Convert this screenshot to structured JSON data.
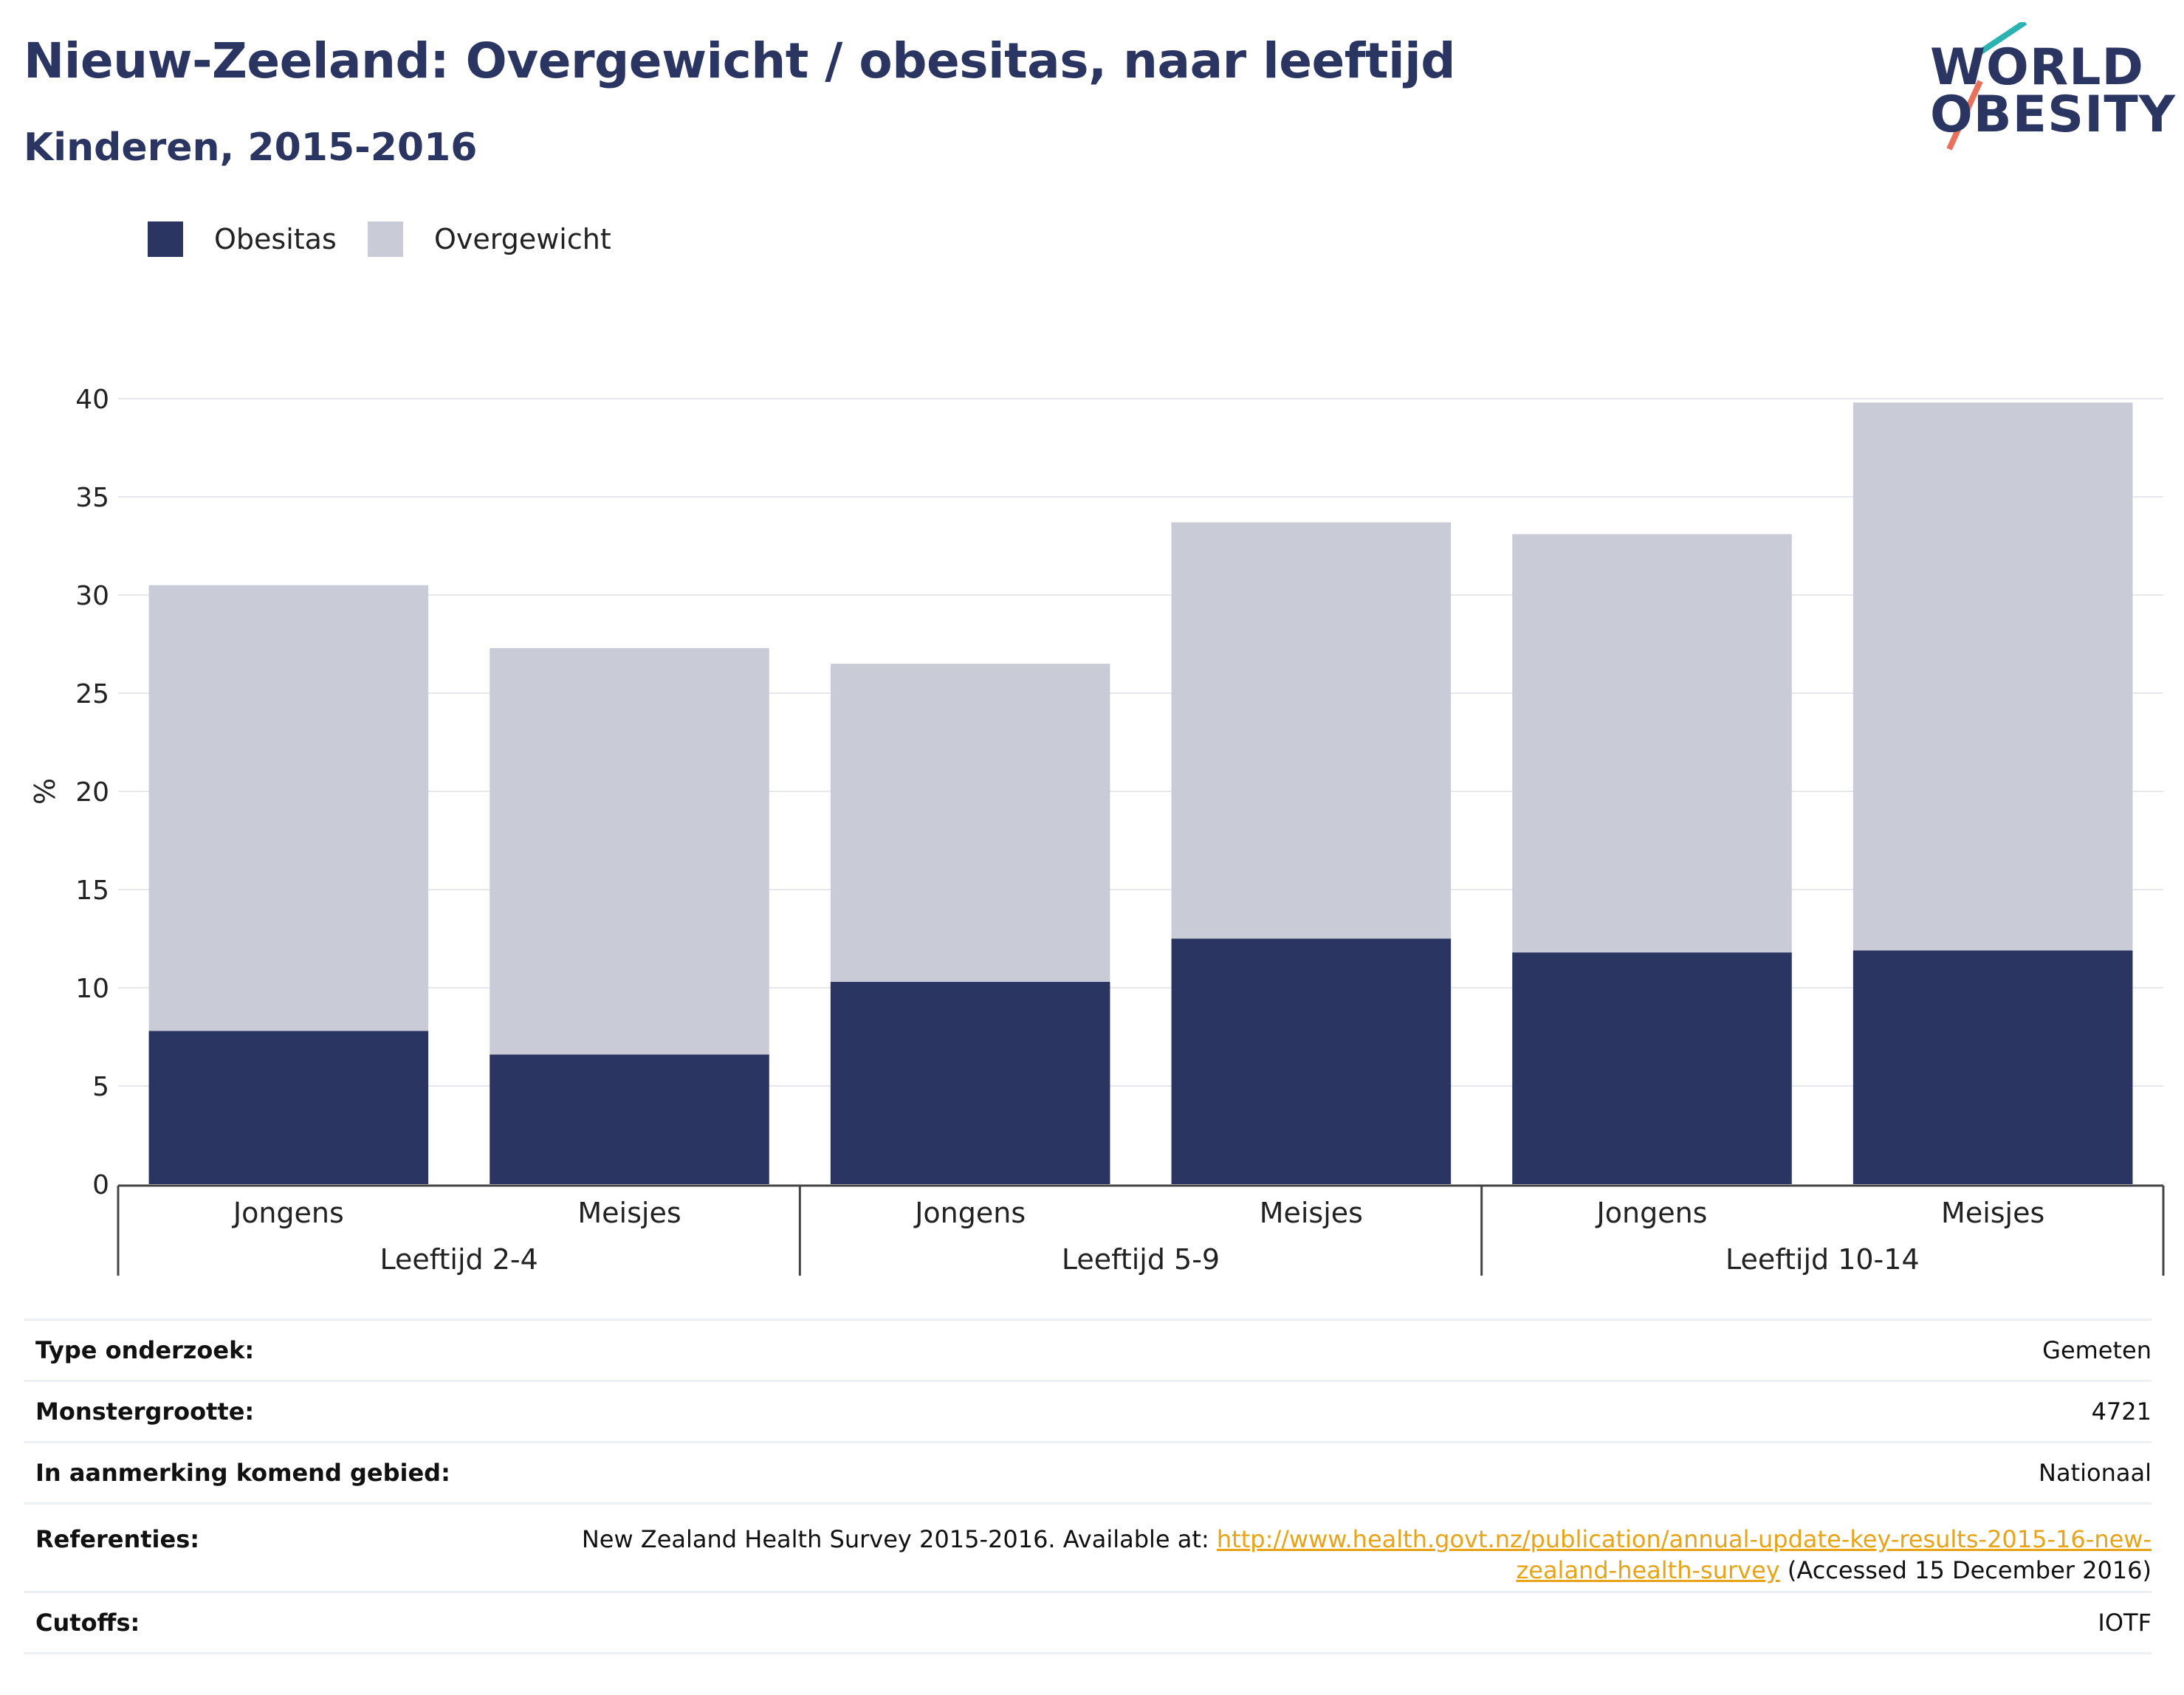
{
  "header": {
    "title": "Nieuw-Zeeland: Overgewicht / obesitas, naar leeftijd",
    "subtitle": "Kinderen, 2015-2016"
  },
  "logo": {
    "line1": "WORLD",
    "line2": "OBESITY",
    "accent_colors": [
      "#2bb3b1",
      "#e8715b"
    ]
  },
  "legend": [
    {
      "label": "Obesitas",
      "color": "#2a3562"
    },
    {
      "label": "Overgewicht",
      "color": "#c9cbd7"
    }
  ],
  "chart_data": {
    "type": "bar",
    "stacked": true,
    "ylabel": "%",
    "ylim": [
      0,
      40
    ],
    "yticks": [
      0,
      5,
      10,
      15,
      20,
      25,
      30,
      35,
      40
    ],
    "grid": true,
    "legend_position": "top-left",
    "categories": [
      "Jongens",
      "Meisjes",
      "Jongens",
      "Meisjes",
      "Jongens",
      "Meisjes"
    ],
    "groups": [
      {
        "label": "Leeftijd 2-4",
        "categories": [
          "Jongens",
          "Meisjes"
        ]
      },
      {
        "label": "Leeftijd 5-9",
        "categories": [
          "Jongens",
          "Meisjes"
        ]
      },
      {
        "label": "Leeftijd 10-14",
        "categories": [
          "Jongens",
          "Meisjes"
        ]
      }
    ],
    "series": [
      {
        "name": "Obesitas",
        "color": "#2a3562",
        "values": [
          7.8,
          6.6,
          10.3,
          12.5,
          11.8,
          11.9
        ]
      },
      {
        "name": "Overgewicht",
        "color": "#c9cbd7",
        "values": [
          22.7,
          20.7,
          16.2,
          21.2,
          21.3,
          27.9
        ]
      }
    ]
  },
  "info": {
    "rows": [
      {
        "label": "Type onderzoek:",
        "value": "Gemeten"
      },
      {
        "label": "Monstergrootte:",
        "value": "4721"
      },
      {
        "label": "In aanmerking komend gebied:",
        "value": "Nationaal"
      }
    ],
    "references": {
      "label": "Referenties:",
      "text_before": "New Zealand Health Survey 2015-2016. Available at: ",
      "link_part1": "http://www.health.govt.nz/publication/annual-update-key-results-2015-16-new-",
      "link_part2": "zealand-health-survey",
      "text_after": " (Accessed 15 December 2016)"
    },
    "cutoffs": {
      "label": "Cutoffs:",
      "value": "IOTF"
    }
  }
}
